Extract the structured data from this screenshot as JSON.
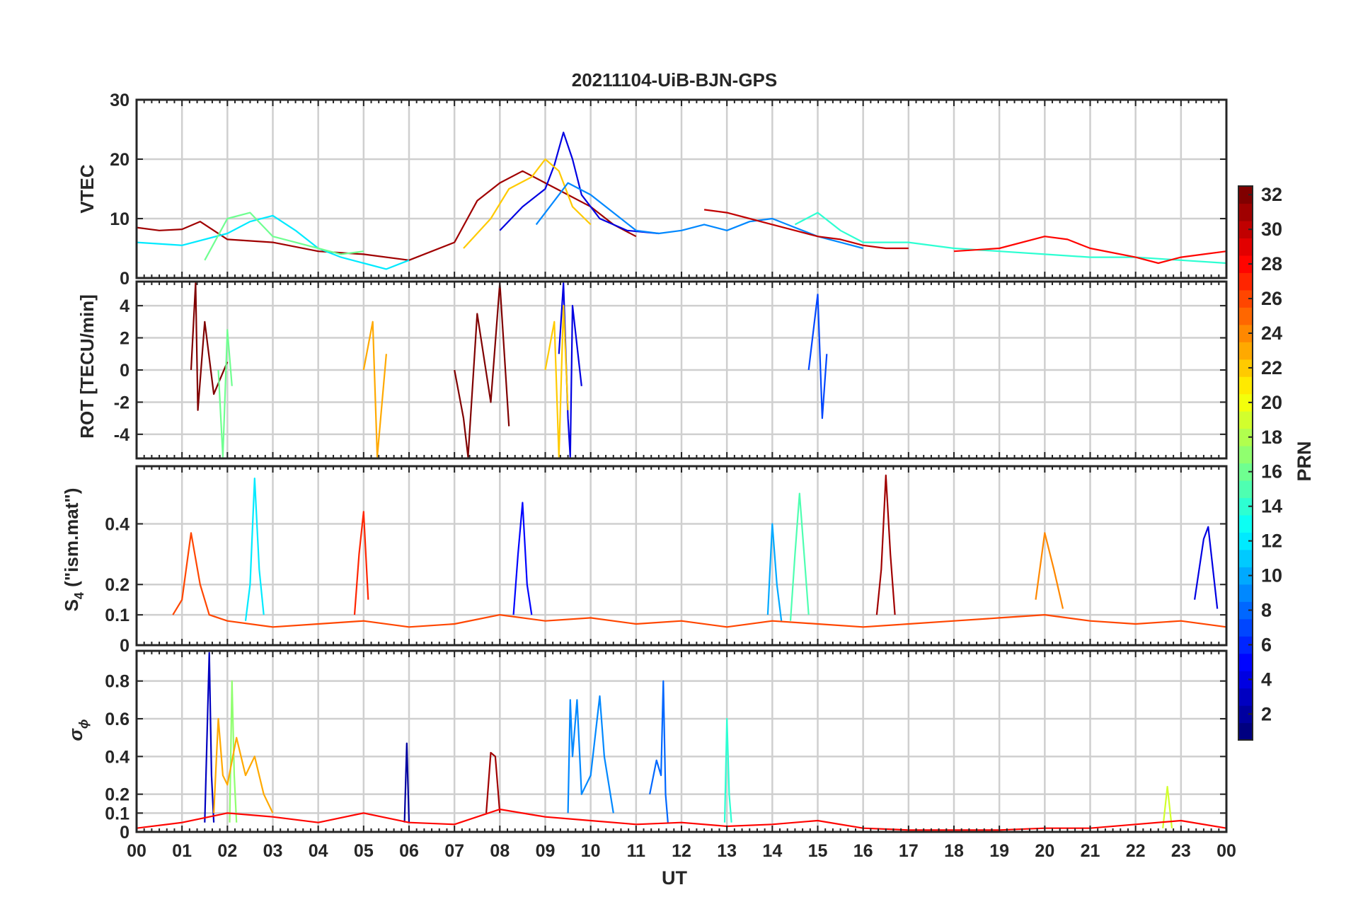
{
  "figure": {
    "title": "20211104-UiB-BJN-GPS"
  },
  "chart_data": [
    {
      "type": "line",
      "panel": "vtec",
      "ylabel": "VTEC",
      "ylim": [
        0,
        30
      ],
      "yticks": [
        0,
        10,
        20,
        30
      ],
      "xlim": [
        0,
        24
      ],
      "grid": true,
      "series": [
        {
          "prn": 31,
          "x": [
            0.0,
            0.5,
            1.0,
            1.4,
            2.0,
            3.0,
            4.0,
            5.0,
            6.0,
            7.0,
            7.5,
            8.0,
            8.5,
            9.0,
            9.5,
            10.0,
            10.5,
            11.0
          ],
          "y": [
            8.5,
            8.0,
            8.2,
            9.5,
            6.5,
            6.0,
            4.5,
            4.0,
            3.0,
            6.0,
            13.0,
            16.0,
            18.0,
            16.0,
            14.0,
            12.0,
            9.0,
            7.0
          ]
        },
        {
          "prn": 4,
          "x": [
            8.0,
            8.5,
            9.0,
            9.2,
            9.4,
            9.6,
            9.8,
            10.2,
            10.8,
            11.5
          ],
          "y": [
            8.0,
            12.0,
            15.0,
            19.0,
            24.5,
            20.0,
            14.0,
            10.0,
            8.0,
            7.5
          ]
        },
        {
          "prn": 22,
          "x": [
            7.2,
            7.8,
            8.2,
            8.7,
            9.0,
            9.3,
            9.6,
            10.0
          ],
          "y": [
            5.0,
            10.0,
            15.0,
            17.0,
            20.0,
            18.0,
            12.0,
            9.0
          ]
        },
        {
          "prn": 9,
          "x": [
            8.8,
            9.5,
            10.0,
            10.5,
            11.0,
            11.5,
            12.0,
            12.5,
            13.0,
            13.5,
            14.0,
            14.5,
            15.0,
            15.5,
            16.0
          ],
          "y": [
            9.0,
            16.0,
            14.0,
            11.0,
            8.0,
            7.5,
            8.0,
            9.0,
            8.0,
            9.5,
            10.0,
            8.5,
            7.0,
            6.0,
            5.0
          ]
        },
        {
          "prn": 30,
          "x": [
            12.5,
            13.0,
            13.5,
            14.0,
            14.5,
            15.0,
            15.5,
            16.0,
            16.5,
            17.0
          ],
          "y": [
            11.5,
            11.0,
            10.0,
            9.0,
            8.0,
            7.0,
            6.5,
            5.5,
            5.0,
            5.0
          ]
        },
        {
          "prn": 14,
          "x": [
            14.5,
            15.0,
            15.5,
            16.0,
            17.0,
            18.0,
            19.0,
            20.0,
            21.0,
            22.0,
            23.0,
            24.0
          ],
          "y": [
            9.0,
            11.0,
            8.0,
            6.0,
            6.0,
            5.0,
            4.5,
            4.0,
            3.5,
            3.5,
            3.0,
            2.5
          ]
        },
        {
          "prn": 28,
          "x": [
            18.0,
            19.0,
            20.0,
            20.5,
            21.0,
            22.0,
            22.5,
            23.0,
            23.5,
            24.0
          ],
          "y": [
            4.5,
            5.0,
            7.0,
            6.5,
            5.0,
            3.5,
            2.5,
            3.5,
            4.0,
            4.5
          ]
        },
        {
          "prn": 12,
          "x": [
            0.0,
            1.0,
            2.0,
            2.5,
            3.0,
            3.5,
            4.0,
            4.5,
            5.0,
            5.5,
            6.0
          ],
          "y": [
            6.0,
            5.5,
            7.5,
            9.5,
            10.5,
            8.0,
            5.0,
            3.5,
            2.5,
            1.5,
            3.0
          ]
        },
        {
          "prn": 16,
          "x": [
            1.5,
            2.0,
            2.5,
            3.0,
            3.5,
            4.0,
            4.5,
            5.0
          ],
          "y": [
            3.0,
            10.0,
            11.0,
            7.0,
            6.0,
            5.0,
            4.0,
            4.5
          ]
        }
      ]
    },
    {
      "type": "line",
      "panel": "rot",
      "ylabel": "ROT [TECU/min]",
      "ylim": [
        -5.5,
        5.5
      ],
      "yticks": [
        -4,
        -2,
        0,
        2,
        4
      ],
      "xlim": [
        0,
        24
      ],
      "grid": true,
      "series": [
        {
          "prn": 32,
          "x": [
            1.2,
            1.3,
            1.35,
            1.5,
            1.7,
            2.0
          ],
          "y": [
            0,
            5.4,
            -2.5,
            3.0,
            -1.5,
            0.5
          ]
        },
        {
          "prn": 32,
          "x": [
            7.0,
            7.2,
            7.3,
            7.5,
            7.8,
            8.0,
            8.2
          ],
          "y": [
            0,
            -3.0,
            -5.4,
            3.5,
            -2.0,
            5.4,
            -3.5
          ]
        },
        {
          "prn": 4,
          "x": [
            9.3,
            9.4,
            9.5,
            9.55,
            9.6,
            9.8
          ],
          "y": [
            1.0,
            5.4,
            -3.0,
            -5.4,
            4.0,
            -1.0
          ]
        },
        {
          "prn": 22,
          "x": [
            9.0,
            9.2,
            9.3,
            9.4,
            9.5
          ],
          "y": [
            0,
            3.0,
            -5.4,
            4.0,
            -2.5
          ]
        },
        {
          "prn": 23,
          "x": [
            5.0,
            5.2,
            5.3,
            5.5
          ],
          "y": [
            0,
            3.0,
            -5.4,
            1.0
          ]
        },
        {
          "prn": 7,
          "x": [
            14.8,
            15.0,
            15.1,
            15.2
          ],
          "y": [
            0,
            4.7,
            -3.0,
            1.0
          ]
        },
        {
          "prn": 16,
          "x": [
            1.8,
            1.9,
            2.0,
            2.1
          ],
          "y": [
            0,
            -5.4,
            2.5,
            -1.0
          ]
        }
      ]
    },
    {
      "type": "line",
      "panel": "s4",
      "ylabel": "S4 (\"ism.mat\")",
      "ylim": [
        0,
        0.59
      ],
      "yticks": [
        0,
        0.1,
        0.2,
        0.4
      ],
      "xlim": [
        0,
        24
      ],
      "grid": true,
      "series": [
        {
          "prn": 12,
          "x": [
            2.4,
            2.5,
            2.6,
            2.7,
            2.8
          ],
          "y": [
            0.08,
            0.2,
            0.55,
            0.25,
            0.1
          ]
        },
        {
          "prn": 31,
          "x": [
            16.3,
            16.4,
            16.5,
            16.6,
            16.7
          ],
          "y": [
            0.1,
            0.25,
            0.56,
            0.3,
            0.1
          ]
        },
        {
          "prn": 15,
          "x": [
            14.4,
            14.5,
            14.6,
            14.7,
            14.8
          ],
          "y": [
            0.08,
            0.3,
            0.5,
            0.3,
            0.1
          ]
        },
        {
          "prn": 5,
          "x": [
            8.3,
            8.4,
            8.5,
            8.6,
            8.7
          ],
          "y": [
            0.1,
            0.3,
            0.47,
            0.2,
            0.1
          ]
        },
        {
          "prn": 27,
          "x": [
            4.8,
            4.9,
            5.0,
            5.1
          ],
          "y": [
            0.1,
            0.3,
            0.44,
            0.15
          ]
        },
        {
          "prn": 24,
          "x": [
            19.8,
            20.0,
            20.2,
            20.4
          ],
          "y": [
            0.15,
            0.37,
            0.25,
            0.12
          ]
        },
        {
          "prn": 4,
          "x": [
            23.3,
            23.5,
            23.6,
            23.8
          ],
          "y": [
            0.15,
            0.35,
            0.39,
            0.12
          ]
        },
        {
          "prn": 10,
          "x": [
            13.9,
            14.0,
            14.1,
            14.2
          ],
          "y": [
            0.1,
            0.4,
            0.2,
            0.08
          ]
        },
        {
          "prn": 26,
          "x": [
            0.8,
            1.0,
            1.2,
            1.4,
            1.6,
            2.0,
            3.0,
            4.0,
            5.0,
            6.0,
            7.0,
            8.0,
            9.0,
            10.0,
            11.0,
            12.0,
            13.0,
            14.0,
            15.0,
            16.0,
            17.0,
            18.0,
            19.0,
            20.0,
            21.0,
            22.0,
            23.0,
            24.0
          ],
          "y": [
            0.1,
            0.15,
            0.37,
            0.2,
            0.1,
            0.08,
            0.06,
            0.07,
            0.08,
            0.06,
            0.07,
            0.1,
            0.08,
            0.09,
            0.07,
            0.08,
            0.06,
            0.08,
            0.07,
            0.06,
            0.07,
            0.08,
            0.09,
            0.1,
            0.08,
            0.07,
            0.08,
            0.06
          ]
        }
      ]
    },
    {
      "type": "line",
      "panel": "sigma_phi",
      "ylabel": "σ ϕ",
      "ylim": [
        0,
        0.96
      ],
      "yticks": [
        0,
        0.1,
        0.2,
        0.4,
        0.6,
        0.8
      ],
      "xlim": [
        0,
        24
      ],
      "grid": true,
      "series": [
        {
          "prn": 3,
          "x": [
            1.5,
            1.55,
            1.6,
            1.65,
            1.7
          ],
          "y": [
            0.05,
            0.5,
            0.95,
            0.3,
            0.05
          ]
        },
        {
          "prn": 17,
          "x": [
            2.05,
            2.1,
            2.15,
            2.2
          ],
          "y": [
            0.05,
            0.8,
            0.3,
            0.05
          ]
        },
        {
          "prn": 8,
          "x": [
            11.3,
            11.45,
            11.55,
            11.6,
            11.65,
            11.7
          ],
          "y": [
            0.2,
            0.38,
            0.3,
            0.8,
            0.2,
            0.05
          ]
        },
        {
          "prn": 9,
          "x": [
            9.5,
            9.55,
            9.6,
            9.7,
            9.8,
            10.0,
            10.2,
            10.3,
            10.5
          ],
          "y": [
            0.1,
            0.7,
            0.4,
            0.7,
            0.2,
            0.3,
            0.72,
            0.4,
            0.1
          ]
        },
        {
          "prn": 14,
          "x": [
            12.95,
            13.0,
            13.05,
            13.1
          ],
          "y": [
            0.05,
            0.6,
            0.2,
            0.05
          ]
        },
        {
          "prn": 23,
          "x": [
            1.7,
            1.8,
            1.9,
            2.0,
            2.2,
            2.4,
            2.6,
            2.8,
            3.0
          ],
          "y": [
            0.1,
            0.6,
            0.3,
            0.25,
            0.5,
            0.3,
            0.4,
            0.2,
            0.1
          ]
        },
        {
          "prn": 31,
          "x": [
            7.7,
            7.8,
            7.9,
            8.0
          ],
          "y": [
            0.1,
            0.42,
            0.4,
            0.1
          ]
        },
        {
          "prn": 19,
          "x": [
            22.6,
            22.7,
            22.8
          ],
          "y": [
            0.02,
            0.24,
            0.02
          ]
        },
        {
          "prn": 2,
          "x": [
            5.9,
            5.95,
            6.0
          ],
          "y": [
            0.05,
            0.47,
            0.05
          ]
        },
        {
          "prn": 28,
          "x": [
            0.0,
            1.0,
            2.0,
            3.0,
            4.0,
            5.0,
            6.0,
            7.0,
            8.0,
            9.0,
            10.0,
            11.0,
            12.0,
            13.0,
            14.0,
            15.0,
            16.0,
            17.0,
            18.0,
            19.0,
            20.0,
            21.0,
            22.0,
            23.0,
            24.0
          ],
          "y": [
            0.02,
            0.05,
            0.1,
            0.08,
            0.05,
            0.1,
            0.05,
            0.04,
            0.12,
            0.08,
            0.06,
            0.04,
            0.05,
            0.03,
            0.04,
            0.06,
            0.02,
            0.01,
            0.01,
            0.01,
            0.02,
            0.02,
            0.04,
            0.06,
            0.02
          ]
        }
      ]
    }
  ],
  "x_axis": {
    "label": "UT",
    "ticks": [
      "00",
      "01",
      "02",
      "03",
      "04",
      "05",
      "06",
      "07",
      "08",
      "09",
      "10",
      "11",
      "12",
      "13",
      "14",
      "15",
      "16",
      "17",
      "18",
      "19",
      "20",
      "21",
      "22",
      "23",
      "00"
    ]
  },
  "colorbar": {
    "label": "PRN",
    "range": [
      1,
      32
    ],
    "ticks": [
      2,
      4,
      6,
      8,
      10,
      12,
      14,
      16,
      18,
      20,
      22,
      24,
      26,
      28,
      30,
      32
    ],
    "colormap": "jet"
  },
  "labels": {
    "vtec_ylabel": "VTEC",
    "rot_ylabel": "ROT [TECU/min]",
    "s4_ylabel_main": "S",
    "s4_ylabel_sub": "4",
    "s4_ylabel_rest": " (\"ism.mat\")",
    "sigma_main": "σ",
    "sigma_sub": "ϕ"
  }
}
